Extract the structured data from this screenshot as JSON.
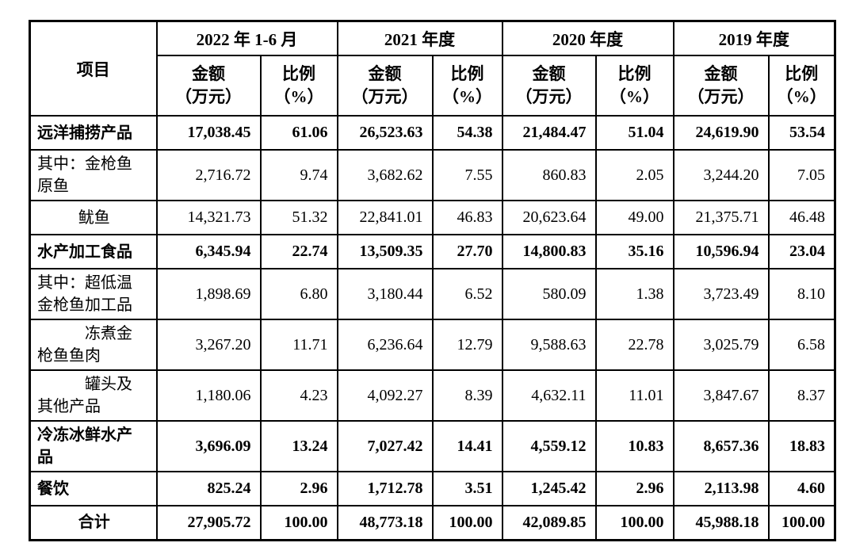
{
  "page": {
    "background_color": "#ffffff",
    "border_color": "#000000",
    "text_color": "#000000"
  },
  "table": {
    "item_header": "项目",
    "periods": [
      "2022 年 1-6 月",
      "2021 年度",
      "2020 年度",
      "2019 年度"
    ],
    "amount_header": "金额\n（万元）",
    "ratio_header": "比例\n（%）",
    "rows": [
      {
        "label": "远洋捕捞产品",
        "bold": true,
        "align": "left",
        "values": [
          "17,038.45",
          "61.06",
          "26,523.63",
          "54.38",
          "21,484.47",
          "51.04",
          "24,619.90",
          "53.54"
        ]
      },
      {
        "label": "其中：金枪鱼\n原鱼",
        "bold": false,
        "align": "left",
        "values": [
          "2,716.72",
          "9.74",
          "3,682.62",
          "7.55",
          "860.83",
          "2.05",
          "3,244.20",
          "7.05"
        ]
      },
      {
        "label": "鱿鱼",
        "bold": false,
        "align": "center",
        "values": [
          "14,321.73",
          "51.32",
          "22,841.01",
          "46.83",
          "20,623.64",
          "49.00",
          "21,375.71",
          "46.48"
        ]
      },
      {
        "label": "水产加工食品",
        "bold": true,
        "align": "left",
        "values": [
          "6,345.94",
          "22.74",
          "13,509.35",
          "27.70",
          "14,800.83",
          "35.16",
          "10,596.94",
          "23.04"
        ]
      },
      {
        "label": "其中：超低温\n金枪鱼加工品",
        "bold": false,
        "align": "left",
        "values": [
          "1,898.69",
          "6.80",
          "3,180.44",
          "6.52",
          "580.09",
          "1.38",
          "3,723.49",
          "8.10"
        ]
      },
      {
        "label": "冻煮金\n枪鱼鱼肉",
        "bold": false,
        "align": "indent",
        "values": [
          "3,267.20",
          "11.71",
          "6,236.64",
          "12.79",
          "9,588.63",
          "22.78",
          "3,025.79",
          "6.58"
        ]
      },
      {
        "label": "罐头及\n其他产品",
        "bold": false,
        "align": "indent",
        "values": [
          "1,180.06",
          "4.23",
          "4,092.27",
          "8.39",
          "4,632.11",
          "11.01",
          "3,847.67",
          "8.37"
        ]
      },
      {
        "label": "冷冻冰鲜水产\n品",
        "bold": true,
        "align": "left",
        "values": [
          "3,696.09",
          "13.24",
          "7,027.42",
          "14.41",
          "4,559.12",
          "10.83",
          "8,657.36",
          "18.83"
        ]
      },
      {
        "label": "餐饮",
        "bold": true,
        "align": "left",
        "values": [
          "825.24",
          "2.96",
          "1,712.78",
          "3.51",
          "1,245.42",
          "2.96",
          "2,113.98",
          "4.60"
        ]
      },
      {
        "label": "合计",
        "bold": true,
        "align": "center",
        "values": [
          "27,905.72",
          "100.00",
          "48,773.18",
          "100.00",
          "42,089.85",
          "100.00",
          "45,988.18",
          "100.00"
        ]
      }
    ]
  }
}
